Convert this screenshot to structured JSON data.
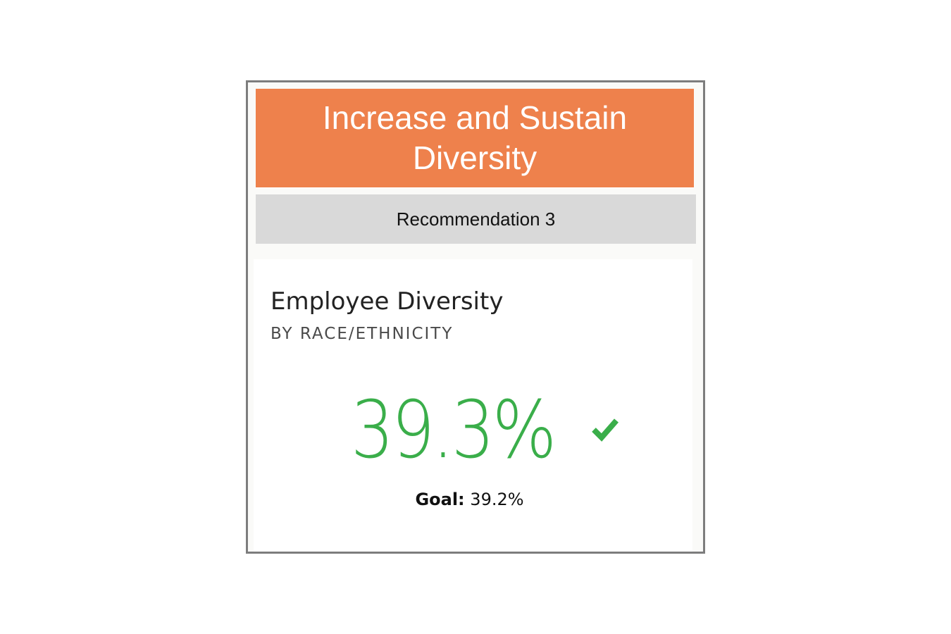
{
  "colors": {
    "accent": "#ee814c",
    "good": "#3aae4a",
    "frame": "#7d7d7d",
    "subheader_bg": "#d9d9d9"
  },
  "card": {
    "header_title": "Increase and Sustain Diversity",
    "subheader": "Recommendation 3"
  },
  "kpi": {
    "title": "Employee Diversity",
    "subtitle": "BY RACE/ETHNICITY",
    "value": "39.3%",
    "status_icon": "check-icon",
    "goal_label": "Goal:",
    "goal_value": "39.2%"
  }
}
